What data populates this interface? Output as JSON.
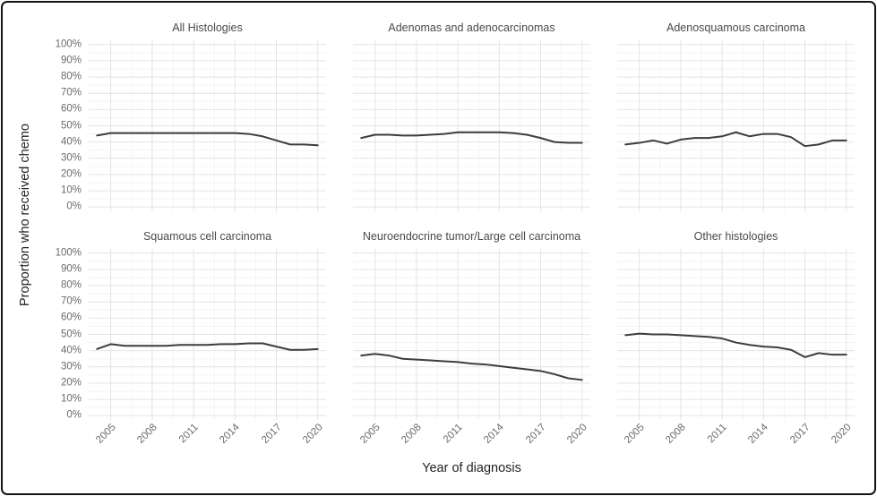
{
  "chart_data": {
    "type": "line",
    "layout": "facet-grid-2x3",
    "title": "",
    "xlabel": "Year of diagnosis",
    "ylabel": "Proportion who received chemo",
    "x_range": [
      2004,
      2020
    ],
    "x": [
      2004,
      2005,
      2006,
      2007,
      2008,
      2009,
      2010,
      2011,
      2012,
      2013,
      2014,
      2015,
      2016,
      2017,
      2018,
      2019,
      2020
    ],
    "x_ticks": [
      "2005",
      "2008",
      "2011",
      "2014",
      "2017",
      "2020"
    ],
    "x_tick_years": [
      2005,
      2008,
      2011,
      2014,
      2017,
      2020
    ],
    "x_minor_years": [
      2006.5,
      2009.5,
      2012.5,
      2015.5,
      2018.5
    ],
    "y_ticks": [
      "100%",
      "90%",
      "80%",
      "70%",
      "60%",
      "50%",
      "40%",
      "30%",
      "20%",
      "10%",
      "0%"
    ],
    "y_tick_values": [
      100,
      90,
      80,
      70,
      60,
      50,
      40,
      30,
      20,
      10,
      0
    ],
    "ylim": [
      0,
      100
    ],
    "grid": "horizontal major every 10% with minor every 5%; vertical major every 3 years with minor between; light gray on white; no legend; x labels rotated 45",
    "facets": [
      {
        "title": "All Histologies",
        "values": [
          44,
          45.5,
          45.5,
          45.5,
          45.5,
          45.5,
          45.5,
          45.5,
          45.5,
          45.5,
          45.5,
          45,
          43.5,
          41,
          38.5,
          38.5,
          38
        ]
      },
      {
        "title": "Adenomas and adenocarcinomas",
        "values": [
          42.5,
          44.5,
          44.5,
          44,
          44,
          44.5,
          45,
          46,
          46,
          46,
          46,
          45.5,
          44.5,
          42.5,
          40,
          39.5,
          39.5
        ]
      },
      {
        "title": "Adenosquamous carcinoma",
        "values": [
          38.5,
          39.5,
          41,
          39,
          41.5,
          42.5,
          42.5,
          43.5,
          46,
          43.5,
          45,
          45,
          43,
          37.5,
          38.5,
          41,
          41
        ]
      },
      {
        "title": "Squamous cell carcinoma",
        "values": [
          41,
          44,
          43,
          43,
          43,
          43,
          43.5,
          43.5,
          43.5,
          44,
          44,
          44.5,
          44.5,
          42.5,
          40.5,
          40.5,
          41
        ]
      },
      {
        "title": "Neuroendocrine tumor/Large cell carcinoma",
        "values": [
          37,
          38,
          37,
          35,
          34.5,
          34,
          33.5,
          33,
          32,
          31.5,
          30.5,
          29.5,
          28.5,
          27.5,
          25.5,
          23,
          22
        ]
      },
      {
        "title": "Other histologies",
        "values": [
          49.5,
          50.5,
          50,
          50,
          49.5,
          49,
          48.5,
          47.5,
          45,
          43.5,
          42.5,
          42,
          40.5,
          36,
          38.5,
          37.5,
          37.5
        ]
      }
    ],
    "colors": {
      "line": "#3d3d3d",
      "grid_major": "#e4e4e4",
      "grid_minor": "#f3f3f3",
      "facet_title": "#4a4a4a",
      "tick_label": "#6b6b6b",
      "axis_title": "#222222",
      "frame_border": "#141414",
      "background": "#ffffff"
    }
  }
}
